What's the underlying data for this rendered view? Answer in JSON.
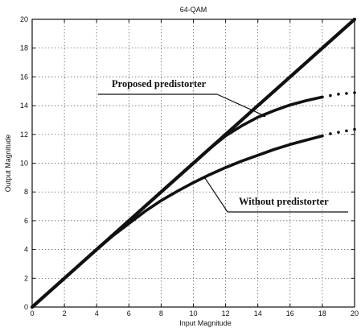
{
  "chart_data": {
    "type": "line",
    "title": "64-QAM",
    "xlabel": "Input Magnitude",
    "ylabel": "Output Magnitude",
    "xlim": [
      0,
      20
    ],
    "ylim": [
      0,
      20
    ],
    "xticks": [
      0,
      2,
      4,
      6,
      8,
      10,
      12,
      14,
      16,
      18,
      20
    ],
    "yticks": [
      0,
      2,
      4,
      6,
      8,
      10,
      12,
      14,
      16,
      18,
      20
    ],
    "grid": true,
    "series": [
      {
        "x": [
          0,
          2,
          4,
          6,
          8,
          10,
          12,
          14,
          16,
          18,
          20
        ],
        "y": [
          0,
          2,
          4,
          6,
          8,
          10,
          12,
          14,
          16,
          18,
          20
        ],
        "style": "solid"
      },
      {
        "x": [
          0,
          2,
          4,
          6,
          8,
          10,
          11,
          12,
          13,
          14,
          15,
          16,
          17,
          18
        ],
        "y": [
          0,
          2,
          4,
          6,
          8,
          10,
          11,
          11.9,
          12.6,
          13.2,
          13.65,
          14.05,
          14.35,
          14.6
        ],
        "dotted_x": [
          18,
          18.5,
          19,
          19.5,
          20
        ],
        "dotted_y": [
          14.6,
          14.7,
          14.8,
          14.85,
          14.9
        ],
        "style": "solid+dotted"
      },
      {
        "x": [
          0,
          2,
          4,
          5,
          6,
          7,
          8,
          9,
          10,
          11,
          12,
          13,
          14,
          15,
          16,
          17,
          18
        ],
        "y": [
          0,
          2,
          4,
          4.95,
          5.8,
          6.65,
          7.4,
          8.05,
          8.65,
          9.2,
          9.7,
          10.15,
          10.55,
          10.95,
          11.3,
          11.6,
          11.9
        ],
        "dotted_x": [
          18,
          18.5,
          19,
          19.5,
          20
        ],
        "dotted_y": [
          11.9,
          12.05,
          12.15,
          12.25,
          12.35
        ],
        "style": "solid+dotted"
      }
    ],
    "annotations": [
      {
        "text": "Proposed predistorter",
        "target_x": 14.4,
        "target_y": 13.3
      },
      {
        "text": "Without predistorter",
        "target_x": 10.7,
        "target_y": 9.0
      }
    ]
  }
}
